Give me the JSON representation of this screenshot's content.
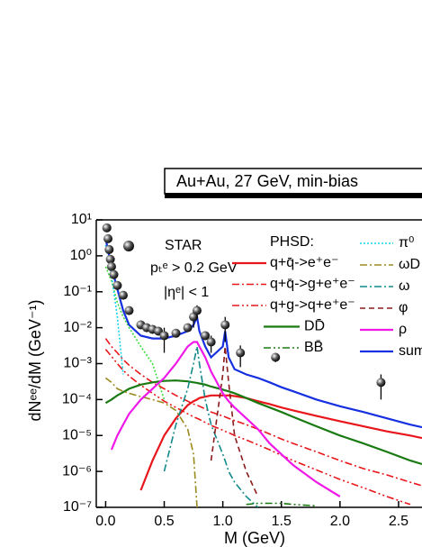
{
  "chart_data": {
    "type": "line",
    "title": "Au+Au, 27 GeV, min-bias",
    "x_label": "M (GeV)",
    "y_label": "dNᵉᵉ/dM (GeV⁻¹)",
    "annotations": [
      "pₜᵉ > 0.2 GeV",
      "|ηᵉ| < 1",
      "PHSD:"
    ],
    "ylog": true,
    "xlim": [
      -0.08,
      2.7
    ],
    "ylim": [
      1e-07,
      10
    ],
    "xticks": [
      {
        "value": 0,
        "label": "0.0"
      },
      0.5,
      {
        "value": 1,
        "label": "1.0"
      },
      1.5,
      {
        "value": 2,
        "label": "2.0"
      },
      2.5
    ],
    "yticks": [
      {
        "value": 1e-07,
        "label": "10⁻⁷"
      },
      {
        "value": 1e-06,
        "label": "10⁻⁶"
      },
      {
        "value": 1e-05,
        "label": "10⁻⁵"
      },
      {
        "value": 0.0001,
        "label": "10⁻⁴"
      },
      {
        "value": 0.001,
        "label": "10⁻³"
      },
      {
        "value": 0.01,
        "label": "10⁻²"
      },
      {
        "value": 0.1,
        "label": "10⁻¹"
      },
      {
        "value": 1,
        "label": "10⁰"
      },
      {
        "value": 10,
        "label": "10¹"
      }
    ],
    "star": {
      "name": "STAR",
      "x": [
        0.01,
        0.02,
        0.03,
        0.04,
        0.05,
        0.07,
        0.1,
        0.15,
        0.2,
        0.3,
        0.35,
        0.4,
        0.45,
        0.5,
        0.6,
        0.7,
        0.75,
        0.78,
        0.85,
        0.9,
        1.02,
        1.15,
        1.45,
        2.35
      ],
      "values": [
        6,
        3,
        1.5,
        0.8,
        0.5,
        0.3,
        0.15,
        0.08,
        0.03,
        0.012,
        0.01,
        0.009,
        0.008,
        0.006,
        0.007,
        0.01,
        0.02,
        0.03,
        0.006,
        0.004,
        0.012,
        0.002,
        0.0015,
        0.0003
      ],
      "errors": [
        null,
        null,
        null,
        null,
        null,
        null,
        null,
        null,
        null,
        null,
        null,
        null,
        null,
        0.004,
        null,
        null,
        0.01,
        0.012,
        null,
        0.002,
        0.008,
        0.0012,
        0.0004,
        0.0002
      ]
    },
    "x": [
      0,
      0.05,
      0.1,
      0.15,
      0.2,
      0.3,
      0.4,
      0.5,
      0.6,
      0.7,
      0.75,
      0.78,
      0.8,
      0.85,
      0.9,
      1.0,
      1.02,
      1.05,
      1.1,
      1.2,
      1.3,
      1.4,
      1.5,
      1.6,
      1.8,
      2.0,
      2.2,
      2.4,
      2.6,
      2.7
    ],
    "series": [
      {
        "name": "q+q̄->e⁺e⁻",
        "color": "#e8161b",
        "dash": "solid",
        "values": [
          null,
          null,
          null,
          null,
          null,
          3e-07,
          2e-06,
          1e-05,
          3e-05,
          7e-05,
          9e-05,
          0.0001,
          0.00011,
          0.00012,
          0.00013,
          0.00013,
          0.00013,
          0.00013,
          0.000125,
          0.00011,
          9e-05,
          7.5e-05,
          6e-05,
          5e-05,
          3.5e-05,
          2.5e-05,
          1.8e-05,
          1.3e-05,
          1e-05,
          8.5e-06
        ]
      },
      {
        "name": "q+q̄->g+e⁺e⁻",
        "color": "#e8161b",
        "dash": "dashdot",
        "values": [
          0.005,
          0.003,
          0.002,
          0.0013,
          0.0009,
          0.0005,
          0.0003,
          0.0002,
          0.00013,
          9e-05,
          7.5e-05,
          7e-05,
          6.5e-05,
          5.5e-05,
          4.5e-05,
          3.5e-05,
          3.3e-05,
          3e-05,
          2.6e-05,
          2e-05,
          1.5e-05,
          1.1e-05,
          8e-06,
          6e-06,
          3.5e-06,
          2e-06,
          1.2e-06,
          8e-07,
          5e-07,
          4e-07
        ]
      },
      {
        "name": "q+g->q+e⁺e⁻",
        "color": "#e8161b",
        "dash": "dashdotdot",
        "values": [
          0.0025,
          0.0016,
          0.001,
          0.00065,
          0.00045,
          0.00025,
          0.00015,
          9e-05,
          6e-05,
          4e-05,
          3.3e-05,
          3e-05,
          2.8e-05,
          2.3e-05,
          1.9e-05,
          1.4e-05,
          1.3e-05,
          1.2e-05,
          1e-05,
          7.5e-06,
          5.5e-06,
          4e-06,
          2.8e-06,
          2e-06,
          1.1e-06,
          6e-07,
          3.5e-07,
          2e-07,
          1.2e-07,
          null
        ]
      },
      {
        "name": "DD̄",
        "color": "#1a7a12",
        "dash": "solid",
        "values": [
          8e-05,
          0.0001,
          0.00013,
          0.00016,
          0.0002,
          0.00026,
          0.0003,
          0.00033,
          0.00034,
          0.00032,
          0.0003,
          0.00029,
          0.00028,
          0.00026,
          0.00023,
          0.00019,
          0.00018,
          0.00017,
          0.00015,
          0.00011,
          8e-05,
          6e-05,
          4.5e-05,
          3.3e-05,
          1.8e-05,
          1e-05,
          6e-06,
          3.5e-06,
          2e-06,
          1.6e-06
        ]
      },
      {
        "name": "BB̄",
        "color": "#1a7a12",
        "dash": "dashdotdot",
        "values": [
          null,
          null,
          null,
          null,
          null,
          null,
          null,
          null,
          null,
          null,
          null,
          null,
          null,
          null,
          null,
          null,
          null,
          null,
          null,
          1.2e-07,
          1.3e-07,
          1.3e-07,
          1.3e-07,
          1.2e-07,
          1.1e-07,
          null,
          null,
          null,
          null,
          null
        ]
      },
      {
        "name": "π⁰",
        "color": "#17d3e8",
        "dash": "dotted",
        "values": [
          2,
          0.3,
          0.02,
          0.0005,
          null,
          null,
          null,
          null,
          null,
          null,
          null,
          null,
          null,
          null,
          null,
          null,
          null,
          null,
          null,
          null,
          null,
          null,
          null,
          null,
          null,
          null,
          null,
          null,
          null,
          null
        ]
      },
      {
        "name": "ωD",
        "color": "#9a8a20",
        "dash": "dashdot",
        "values": [
          0.0004,
          0.0003,
          0.0002,
          0.00017,
          0.00015,
          0.00012,
          0.0001,
          8e-05,
          5e-05,
          1.5e-05,
          3e-06,
          1e-07,
          null,
          null,
          null,
          null,
          null,
          null,
          null,
          null,
          null,
          null,
          null,
          null,
          null,
          null,
          null,
          null,
          null,
          null
        ]
      },
      {
        "name": "ω",
        "color": "#138a8a",
        "dash": "dashdot",
        "values": [
          null,
          null,
          null,
          null,
          null,
          null,
          null,
          1e-06,
          2e-05,
          0.0002,
          0.001,
          0.003,
          0.001,
          0.0001,
          2e-05,
          3e-06,
          2e-06,
          1e-06,
          5e-07,
          2e-07,
          1e-07,
          null,
          null,
          null,
          null,
          null,
          null,
          null,
          null,
          null
        ]
      },
      {
        "name": "φ",
        "color": "#8b1a1a",
        "dash": "dashed",
        "values": [
          null,
          null,
          null,
          null,
          null,
          null,
          null,
          null,
          null,
          null,
          null,
          null,
          null,
          null,
          2e-06,
          0.0005,
          0.003,
          0.0003,
          1e-05,
          1e-06,
          2e-07,
          null,
          null,
          null,
          null,
          null,
          null,
          null,
          null,
          null
        ]
      },
      {
        "name": "ρ",
        "color": "#f019e8",
        "dash": "solid",
        "values": [
          null,
          4e-06,
          1e-05,
          2e-05,
          4e-05,
          0.0001,
          0.0002,
          0.0004,
          0.001,
          0.003,
          0.004,
          0.004,
          0.003,
          0.0015,
          0.0006,
          0.00015,
          0.00012,
          9e-05,
          6e-05,
          3e-05,
          1.5e-05,
          6e-06,
          3e-06,
          1.5e-06,
          5e-07,
          2e-07,
          null,
          null,
          null,
          null
        ]
      },
      {
        "name": "sum",
        "color": "#1630e0",
        "dash": "solid",
        "values": [
          3,
          0.5,
          0.12,
          0.03,
          0.012,
          0.006,
          0.005,
          0.005,
          0.006,
          0.008,
          0.012,
          0.02,
          0.008,
          0.003,
          0.0015,
          0.003,
          0.008,
          0.0015,
          0.0007,
          0.0005,
          0.0004,
          0.0003,
          0.00022,
          0.00017,
          0.0001,
          6.5e-05,
          4.5e-05,
          3e-05,
          2e-05,
          1.7e-05
        ]
      }
    ],
    "eta": {
      "color": "#3ddc3d",
      "dash": "dotted",
      "values": [
        0.5,
        0.2,
        0.05,
        0.02,
        0.01,
        0.003,
        0.001,
        0.0001,
        null,
        null,
        null,
        null,
        null,
        null,
        null,
        null,
        null,
        null,
        null,
        null,
        null,
        null,
        null,
        null,
        null,
        null,
        null,
        null,
        null,
        null
      ]
    }
  }
}
